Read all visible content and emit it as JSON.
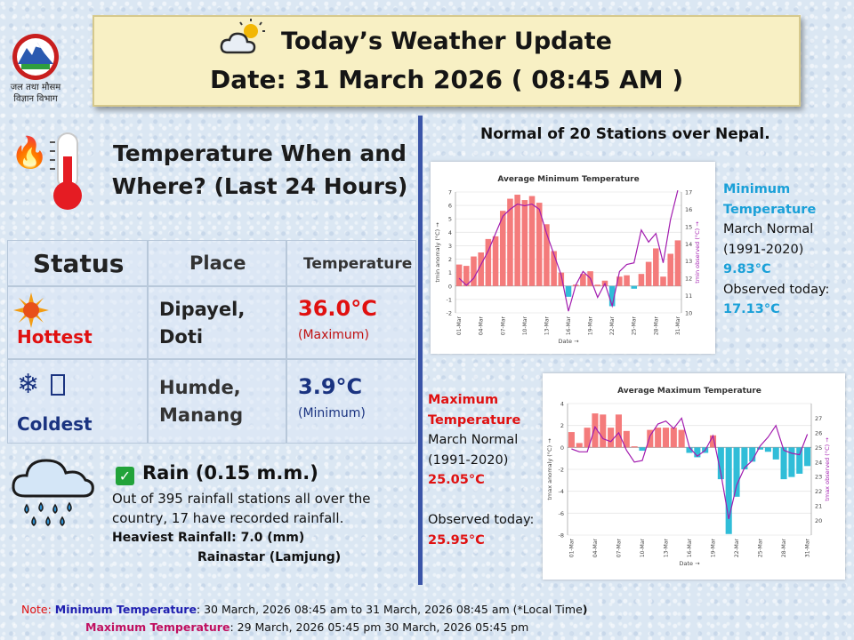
{
  "header": {
    "dept_line1": "जल तथा मौसम",
    "dept_line2": "विज्ञान विभाग",
    "title": "Today’s Weather Update",
    "date_line": "Date: 31 March 2026  ( 08:45 AM )"
  },
  "temperature_section": {
    "heading_line1": "Temperature When and",
    "heading_line2": "Where?  (Last 24 Hours)"
  },
  "table": {
    "headers": {
      "status": "Status",
      "place": "Place",
      "temperature": "Temperature"
    },
    "rows": [
      {
        "status": "Hottest",
        "place_line1": "Dipayel,",
        "place_line2": "Doti",
        "value": "36.0°C",
        "note": "(Maximum)"
      },
      {
        "status": "Coldest",
        "place_line1": "Humde,",
        "place_line2": "Manang",
        "value": "3.9°C",
        "note": "(Minimum)"
      }
    ]
  },
  "rain": {
    "title": "Rain  (0.15 m.m.)",
    "description": "Out of 395 rainfall stations all over the country, 17 have recorded rainfall.",
    "heaviest": "Heaviest Rainfall: 7.0 (mm)",
    "heaviest_place": "Rainastar (Lamjung)"
  },
  "normal_title": "Normal of 20 Stations over Nepal.",
  "min_side": {
    "label_line1": "Minimum",
    "label_line2": "Temperature",
    "normal_line1": "March Normal",
    "normal_line2": "(1991-2020)",
    "normal_value": "9.83°C",
    "observed_label": "Observed today:",
    "observed_value": "17.13°C"
  },
  "max_side": {
    "label_line1": "Maximum",
    "label_line2": "Temperature",
    "normal_line1": "March Normal",
    "normal_line2": "(1991-2020)",
    "normal_value": "25.05°C",
    "observed_label": "Observed today:",
    "observed_value": "25.95°C"
  },
  "footer": {
    "note_label": "Note:",
    "min_label": "Minimum Temperature",
    "min_text": ": 30 March, 2026  08:45 am  to 31 March, 2026  08:45 am (*Local Time",
    "min_close": ")",
    "max_label": "Maximum Temperature",
    "max_text": ":  29 March, 2026  05:45 pm  30 March, 2026  05:45 pm"
  },
  "colors": {
    "positive_bar": "#f47b7b",
    "negative_bar": "#30bdd8",
    "observed_line": "#a21caf",
    "hottest": "#e01010",
    "coldest": "#1a3380"
  },
  "chart_data": [
    {
      "type": "bar",
      "title": "Average Minimum Temperature",
      "xlabel": "Date →",
      "ylabel_left": "tmin anomaly (°C) →",
      "ylabel_right": "tmin observed (°C) →",
      "ylim": [
        -2,
        7
      ],
      "ylim_right": [
        10,
        17
      ],
      "x_ticks": [
        "01-Mar",
        "04-Mar",
        "07-Mar",
        "10-Mar",
        "13-Mar",
        "16-Mar",
        "19-Mar",
        "22-Mar",
        "25-Mar",
        "28-Mar",
        "31-Mar"
      ],
      "y_ticks": [
        -2,
        -1,
        0,
        1,
        2,
        3,
        4,
        5,
        6,
        7
      ],
      "y_ticks_right": [
        10,
        11,
        12,
        13,
        14,
        15,
        16,
        17
      ],
      "categories": [
        "01-Mar",
        "02-Mar",
        "03-Mar",
        "04-Mar",
        "05-Mar",
        "06-Mar",
        "07-Mar",
        "08-Mar",
        "09-Mar",
        "10-Mar",
        "11-Mar",
        "12-Mar",
        "13-Mar",
        "14-Mar",
        "15-Mar",
        "16-Mar",
        "17-Mar",
        "18-Mar",
        "19-Mar",
        "20-Mar",
        "21-Mar",
        "22-Mar",
        "23-Mar",
        "24-Mar",
        "25-Mar",
        "26-Mar",
        "27-Mar",
        "28-Mar",
        "29-Mar",
        "30-Mar",
        "31-Mar"
      ],
      "series": [
        {
          "name": "tmin anomaly (°C)",
          "kind": "bar",
          "axis": "left",
          "values": [
            1.6,
            1.5,
            2.2,
            2.5,
            3.5,
            3.7,
            5.6,
            6.5,
            6.8,
            6.4,
            6.7,
            6.2,
            4.6,
            2.6,
            1.0,
            -0.8,
            0.1,
            0.9,
            1.1,
            0.1,
            0.4,
            -1.5,
            0.7,
            0.8,
            -0.2,
            0.9,
            1.8,
            2.8,
            0.7,
            2.4,
            3.4
          ]
        },
        {
          "name": "tmin observed (°C)",
          "kind": "line",
          "axis": "right",
          "values": [
            12.0,
            11.6,
            12.0,
            12.8,
            13.6,
            14.6,
            15.6,
            16.0,
            16.3,
            16.2,
            16.3,
            16.0,
            14.6,
            13.4,
            12.2,
            10.1,
            11.6,
            12.4,
            12.0,
            10.9,
            11.7,
            10.4,
            12.4,
            12.8,
            12.9,
            14.8,
            14.1,
            14.6,
            12.9,
            15.4,
            17.1
          ]
        }
      ]
    },
    {
      "type": "bar",
      "title": "Average Maximum Temperature",
      "xlabel": "Date →",
      "ylabel_left": "tmax anomaly (°C) →",
      "ylabel_right": "tmax observed (°C) →",
      "ylim": [
        -8,
        4
      ],
      "ylim_right": [
        19,
        28
      ],
      "x_ticks": [
        "01-Mar",
        "04-Mar",
        "07-Mar",
        "10-Mar",
        "13-Mar",
        "16-Mar",
        "19-Mar",
        "22-Mar",
        "25-Mar",
        "28-Mar",
        "31-Mar"
      ],
      "y_ticks": [
        -8,
        -6,
        -4,
        -2,
        0,
        2,
        4
      ],
      "y_ticks_right": [
        20,
        21,
        22,
        23,
        24,
        25,
        26,
        27
      ],
      "categories": [
        "01-Mar",
        "02-Mar",
        "03-Mar",
        "04-Mar",
        "05-Mar",
        "06-Mar",
        "07-Mar",
        "08-Mar",
        "09-Mar",
        "10-Mar",
        "11-Mar",
        "12-Mar",
        "13-Mar",
        "14-Mar",
        "15-Mar",
        "16-Mar",
        "17-Mar",
        "18-Mar",
        "19-Mar",
        "20-Mar",
        "21-Mar",
        "22-Mar",
        "23-Mar",
        "24-Mar",
        "25-Mar",
        "26-Mar",
        "27-Mar",
        "28-Mar",
        "29-Mar",
        "30-Mar",
        "31-Mar"
      ],
      "series": [
        {
          "name": "tmax anomaly (°C)",
          "kind": "bar",
          "axis": "left",
          "values": [
            1.4,
            0.4,
            1.8,
            3.1,
            3.0,
            1.8,
            3.0,
            1.5,
            0.1,
            -0.3,
            1.6,
            1.8,
            1.8,
            1.8,
            1.6,
            -0.5,
            -0.9,
            -0.5,
            1.1,
            -2.9,
            -7.9,
            -4.5,
            -2.0,
            -1.3,
            -0.2,
            -0.4,
            -1.1,
            -2.9,
            -2.7,
            -2.4,
            -1.7
          ]
        },
        {
          "name": "tmax observed (°C)",
          "kind": "line",
          "axis": "right",
          "values": [
            24.9,
            24.7,
            24.7,
            26.4,
            25.6,
            25.4,
            26.0,
            24.8,
            24.0,
            24.1,
            25.8,
            26.6,
            26.8,
            26.3,
            27.0,
            25.0,
            24.4,
            24.8,
            25.8,
            23.2,
            20.1,
            22.4,
            23.6,
            24.1,
            25.1,
            25.7,
            26.5,
            24.8,
            24.6,
            24.5,
            25.9
          ]
        }
      ]
    }
  ]
}
